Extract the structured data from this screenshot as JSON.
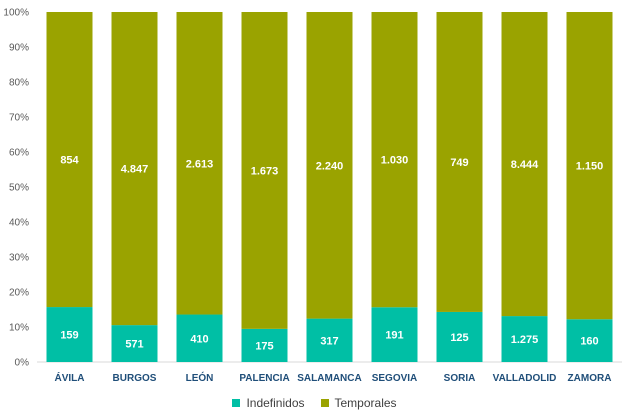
{
  "chart_data": {
    "type": "bar",
    "stacked": true,
    "normalized": true,
    "categories": [
      "ÁVILA",
      "BURGOS",
      "LEÓN",
      "PALENCIA",
      "SALAMANCA",
      "SEGOVIA",
      "SORIA",
      "VALLADOLID",
      "ZAMORA"
    ],
    "series": [
      {
        "name": "Indefinidos",
        "color": "#00bfa5",
        "values": [
          159,
          571,
          410,
          175,
          317,
          191,
          125,
          1275,
          160
        ],
        "labels": [
          "159",
          "571",
          "410",
          "175",
          "317",
          "191",
          "125",
          "1.275",
          "160"
        ]
      },
      {
        "name": "Temporales",
        "color": "#9aa300",
        "values": [
          854,
          4847,
          2613,
          1673,
          2240,
          1030,
          749,
          8444,
          1150
        ],
        "labels": [
          "854",
          "4.847",
          "2.613",
          "1.673",
          "2.240",
          "1.030",
          "749",
          "8.444",
          "1.150"
        ]
      }
    ],
    "yticks": [
      "0%",
      "10%",
      "20%",
      "30%",
      "40%",
      "50%",
      "60%",
      "70%",
      "80%",
      "90%",
      "100%"
    ],
    "ylim": [
      0,
      100
    ],
    "grid": false,
    "legend_position": "bottom"
  }
}
